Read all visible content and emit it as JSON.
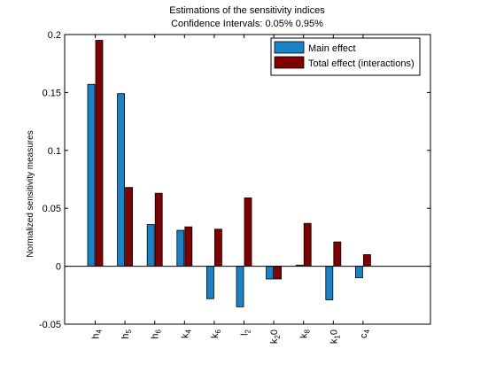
{
  "chart_data": {
    "type": "bar",
    "title": "Estimations of the sensitivity indices",
    "subtitle": "Confidence Intervals: 0.05% 0.95%",
    "ylabel": "Normalized sensitivity measures",
    "xlabel": "",
    "ylim": [
      -0.05,
      0.2
    ],
    "yticks": [
      "-0.05",
      "0",
      "0.05",
      "0.1",
      "0.15",
      "0.2"
    ],
    "ytick_values": [
      -0.05,
      0,
      0.05,
      0.1,
      0.15,
      0.2
    ],
    "categories": [
      {
        "base": "h",
        "sub": "4"
      },
      {
        "base": "h",
        "sub": "5"
      },
      {
        "base": "h",
        "sub": "6"
      },
      {
        "base": "k",
        "sub": "4"
      },
      {
        "base": "k",
        "sub": "6"
      },
      {
        "base": "l",
        "sub": "2"
      },
      {
        "base": "k",
        "sub": "2",
        "tail": "0"
      },
      {
        "base": "k",
        "sub": "8"
      },
      {
        "base": "k",
        "sub": "1",
        "tail": "0"
      },
      {
        "base": "c",
        "sub": "4"
      }
    ],
    "series": [
      {
        "name": "Main effect",
        "color": "#1a82c8",
        "values": [
          0.157,
          0.149,
          0.036,
          0.031,
          -0.028,
          -0.035,
          -0.011,
          0.001,
          -0.029,
          -0.01
        ]
      },
      {
        "name": "Total effect (interactions)",
        "color": "#800000",
        "values": [
          0.195,
          0.068,
          0.063,
          0.034,
          0.032,
          0.059,
          -0.011,
          0.037,
          0.021,
          0.01
        ]
      }
    ],
    "legend": {
      "position": "top-right"
    },
    "grid": false
  }
}
